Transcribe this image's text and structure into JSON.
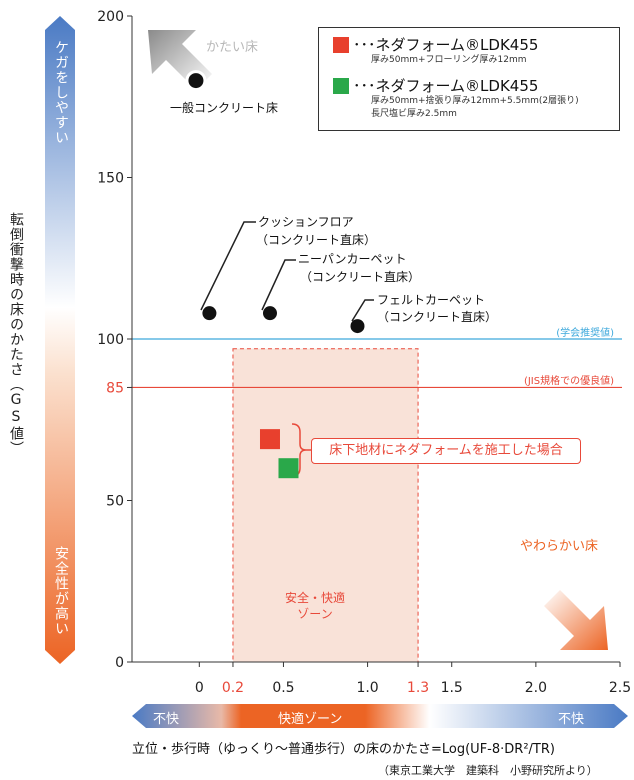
{
  "chart_data": {
    "type": "scatter",
    "xlim": [
      -0.4,
      2.5
    ],
    "ylim": [
      0,
      200
    ],
    "x_ticks": [
      {
        "value": 0,
        "label": "0",
        "color": "#222222"
      },
      {
        "value": 0.2,
        "label": "0.2",
        "color": "#e8493a"
      },
      {
        "value": 0.5,
        "label": "0.5",
        "color": "#222222"
      },
      {
        "value": 1.0,
        "label": "1.0",
        "color": "#222222"
      },
      {
        "value": 1.3,
        "label": "1.3",
        "color": "#e8493a"
      },
      {
        "value": 1.5,
        "label": "1.5",
        "color": "#222222"
      },
      {
        "value": 2.0,
        "label": "2.0",
        "color": "#222222"
      },
      {
        "value": 2.5,
        "label": "2.5",
        "color": "#222222"
      }
    ],
    "y_ticks": [
      {
        "value": 0,
        "label": "0",
        "color": "#222222"
      },
      {
        "value": 50,
        "label": "50",
        "color": "#222222"
      },
      {
        "value": 85,
        "label": "85",
        "color": "#e8493a"
      },
      {
        "value": 100,
        "label": "100",
        "color": "#222222"
      },
      {
        "value": 150,
        "label": "150",
        "color": "#222222"
      },
      {
        "value": 200,
        "label": "200",
        "color": "#222222"
      }
    ],
    "points": [
      {
        "name": "一般コンクリート床",
        "x": -0.02,
        "y": 180,
        "style": "ring"
      },
      {
        "name": "クッションフロア（コンクリート直床）",
        "x": 0.06,
        "y": 108,
        "style": "dot"
      },
      {
        "name": "ニーパンカーペット（コンクリート直床）",
        "x": 0.42,
        "y": 108,
        "style": "dot"
      },
      {
        "name": "フェルトカーペット（コンクリート直床）",
        "x": 0.94,
        "y": 104,
        "style": "dot"
      },
      {
        "name": "ネダフォーム®LDK455 厚み50mm+フローリング厚み12mm",
        "x": 0.42,
        "y": 69,
        "style": "square",
        "color": "#e8402d"
      },
      {
        "name": "ネダフォーム®LDK455 厚み50mm+捨張り厚み12mm+5.5mm(2層張り) 長尺塩ビ厚み2.5mm",
        "x": 0.53,
        "y": 60,
        "style": "square",
        "color": "#2aa84a"
      }
    ],
    "reference_lines": [
      {
        "y": 100,
        "label": "(学会推奨値)",
        "color": "#3fa9dc"
      },
      {
        "y": 85,
        "label": "(JIS規格での優良値)",
        "color": "#e8493a"
      }
    ],
    "comfort_zone": {
      "x": [
        0.2,
        1.3
      ],
      "y": [
        0,
        97
      ],
      "label_line1": "安全・快適",
      "label_line2": "ゾーン",
      "color": "#f9e2d8"
    },
    "grid": false,
    "legend_position": "top-right"
  },
  "legend": {
    "items": [
      {
        "title": "･･･ネダフォーム®LDK455",
        "sub1": "厚み50mm+フローリング厚み12mm",
        "sub2": "",
        "color": "#e8402d"
      },
      {
        "title": "･･･ネダフォーム®LDK455",
        "sub1": "厚み50mm+捨張り厚み12mm+5.5mm(2層張り)",
        "sub2": "長尺塩ビ厚み2.5mm",
        "color": "#2aa84a"
      }
    ]
  },
  "annotations": {
    "concrete": "一般コンクリート床",
    "cushion_1": "クッションフロア",
    "cushion_2": "（コンクリート直床）",
    "kneepan_1": "ニーパンカーペット",
    "kneepan_2": "（コンクリート直床）",
    "felt_1": "フェルトカーペット",
    "felt_2": "（コンクリート直床）",
    "callout": "床下地材にネダフォームを施工した場合",
    "hard_floor": "かたい床",
    "soft_floor": "やわらかい床"
  },
  "y_axis": {
    "title": "転倒衝撃時の床のかたさ（GS値）",
    "bar_top": "ケガをしやすい",
    "bar_bottom": "安全性が高い"
  },
  "x_axis": {
    "bar_left": "不快",
    "bar_middle": "快適ゾーン",
    "bar_right": "不快",
    "title": "立位・歩行時（ゆっくり～普通歩行）の床のかたさ=Log(UF-8·DR²/TR)",
    "source": "（東京工業大学　建築科　小野研究所より）"
  }
}
